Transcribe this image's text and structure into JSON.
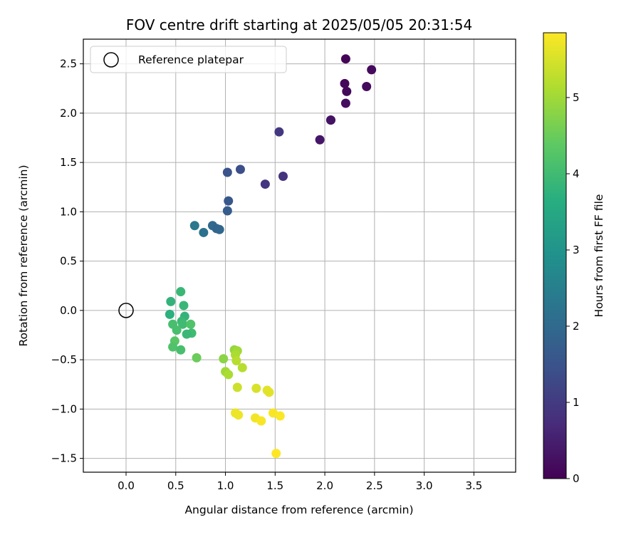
{
  "chart_data": {
    "type": "scatter",
    "title": "FOV centre drift starting at 2025/05/05 20:31:54",
    "xlabel": "Angular distance from reference (arcmin)",
    "ylabel": "Rotation from reference (arcmin)",
    "xlim": [
      -0.43,
      3.92
    ],
    "ylim": [
      -1.64,
      2.75
    ],
    "xticks": [
      "0.0",
      "0.5",
      "1.0",
      "1.5",
      "2.0",
      "2.5",
      "3.0",
      "3.5"
    ],
    "yticks": [
      "-1.5",
      "-1.0",
      "-0.5",
      "0.0",
      "0.5",
      "1.0",
      "1.5",
      "2.0",
      "2.5"
    ],
    "grid": true,
    "legend": {
      "placement": "top-left",
      "entries": [
        "Reference platepar"
      ]
    },
    "reference_point": {
      "x": 0.0,
      "y": 0.0
    },
    "colorbar": {
      "label": "Hours from first FF file",
      "colormap": "viridis",
      "range": [
        0,
        5.85
      ],
      "ticks": [
        "0",
        "1",
        "2",
        "3",
        "4",
        "5"
      ]
    },
    "points": [
      {
        "x": 2.21,
        "y": 2.55,
        "hours": 0.05
      },
      {
        "x": 2.47,
        "y": 2.44,
        "hours": 0.15
      },
      {
        "x": 2.2,
        "y": 2.3,
        "hours": 0.1
      },
      {
        "x": 2.22,
        "y": 2.22,
        "hours": 0.12
      },
      {
        "x": 2.42,
        "y": 2.27,
        "hours": 0.18
      },
      {
        "x": 2.21,
        "y": 2.1,
        "hours": 0.2
      },
      {
        "x": 2.06,
        "y": 1.93,
        "hours": 0.25
      },
      {
        "x": 2.06,
        "y": 1.93,
        "hours": 0.3
      },
      {
        "x": 1.95,
        "y": 1.73,
        "hours": 0.35
      },
      {
        "x": 1.54,
        "y": 1.81,
        "hours": 0.95
      },
      {
        "x": 1.58,
        "y": 1.36,
        "hours": 0.85
      },
      {
        "x": 1.4,
        "y": 1.28,
        "hours": 0.9
      },
      {
        "x": 1.15,
        "y": 1.43,
        "hours": 1.4
      },
      {
        "x": 1.02,
        "y": 1.4,
        "hours": 1.5
      },
      {
        "x": 1.03,
        "y": 1.11,
        "hours": 1.6
      },
      {
        "x": 1.02,
        "y": 1.01,
        "hours": 1.7
      },
      {
        "x": 0.87,
        "y": 0.86,
        "hours": 2.0
      },
      {
        "x": 0.91,
        "y": 0.83,
        "hours": 1.9
      },
      {
        "x": 0.94,
        "y": 0.82,
        "hours": 1.95
      },
      {
        "x": 0.69,
        "y": 0.86,
        "hours": 2.3
      },
      {
        "x": 0.78,
        "y": 0.79,
        "hours": 2.2
      },
      {
        "x": 0.55,
        "y": 0.19,
        "hours": 3.9
      },
      {
        "x": 0.45,
        "y": 0.09,
        "hours": 3.8
      },
      {
        "x": 0.58,
        "y": 0.05,
        "hours": 3.9
      },
      {
        "x": 0.44,
        "y": -0.04,
        "hours": 3.7
      },
      {
        "x": 0.59,
        "y": -0.06,
        "hours": 3.8
      },
      {
        "x": 0.56,
        "y": -0.11,
        "hours": 3.9
      },
      {
        "x": 0.57,
        "y": -0.14,
        "hours": 4.0
      },
      {
        "x": 0.47,
        "y": -0.14,
        "hours": 4.1
      },
      {
        "x": 0.65,
        "y": -0.14,
        "hours": 4.2
      },
      {
        "x": 0.51,
        "y": -0.2,
        "hours": 4.1
      },
      {
        "x": 0.66,
        "y": -0.23,
        "hours": 4.0
      },
      {
        "x": 0.61,
        "y": -0.24,
        "hours": 3.9
      },
      {
        "x": 0.49,
        "y": -0.31,
        "hours": 4.3
      },
      {
        "x": 0.47,
        "y": -0.37,
        "hours": 4.2
      },
      {
        "x": 0.55,
        "y": -0.4,
        "hours": 4.1
      },
      {
        "x": 0.71,
        "y": -0.48,
        "hours": 4.5
      },
      {
        "x": 1.09,
        "y": -0.4,
        "hours": 4.9
      },
      {
        "x": 1.12,
        "y": -0.41,
        "hours": 5.0
      },
      {
        "x": 1.1,
        "y": -0.45,
        "hours": 5.1
      },
      {
        "x": 0.98,
        "y": -0.49,
        "hours": 4.8
      },
      {
        "x": 1.11,
        "y": -0.51,
        "hours": 5.2
      },
      {
        "x": 1.17,
        "y": -0.58,
        "hours": 5.2
      },
      {
        "x": 1.0,
        "y": -0.62,
        "hours": 5.0
      },
      {
        "x": 1.03,
        "y": -0.65,
        "hours": 5.1
      },
      {
        "x": 1.12,
        "y": -0.78,
        "hours": 5.4
      },
      {
        "x": 1.31,
        "y": -0.79,
        "hours": 5.5
      },
      {
        "x": 1.42,
        "y": -0.81,
        "hours": 5.6
      },
      {
        "x": 1.44,
        "y": -0.83,
        "hours": 5.6
      },
      {
        "x": 1.1,
        "y": -1.04,
        "hours": 5.7
      },
      {
        "x": 1.13,
        "y": -1.06,
        "hours": 5.7
      },
      {
        "x": 1.3,
        "y": -1.09,
        "hours": 5.75
      },
      {
        "x": 1.36,
        "y": -1.12,
        "hours": 5.8
      },
      {
        "x": 1.48,
        "y": -1.04,
        "hours": 5.8
      },
      {
        "x": 1.55,
        "y": -1.07,
        "hours": 5.82
      },
      {
        "x": 1.51,
        "y": -1.45,
        "hours": 5.85
      }
    ]
  }
}
